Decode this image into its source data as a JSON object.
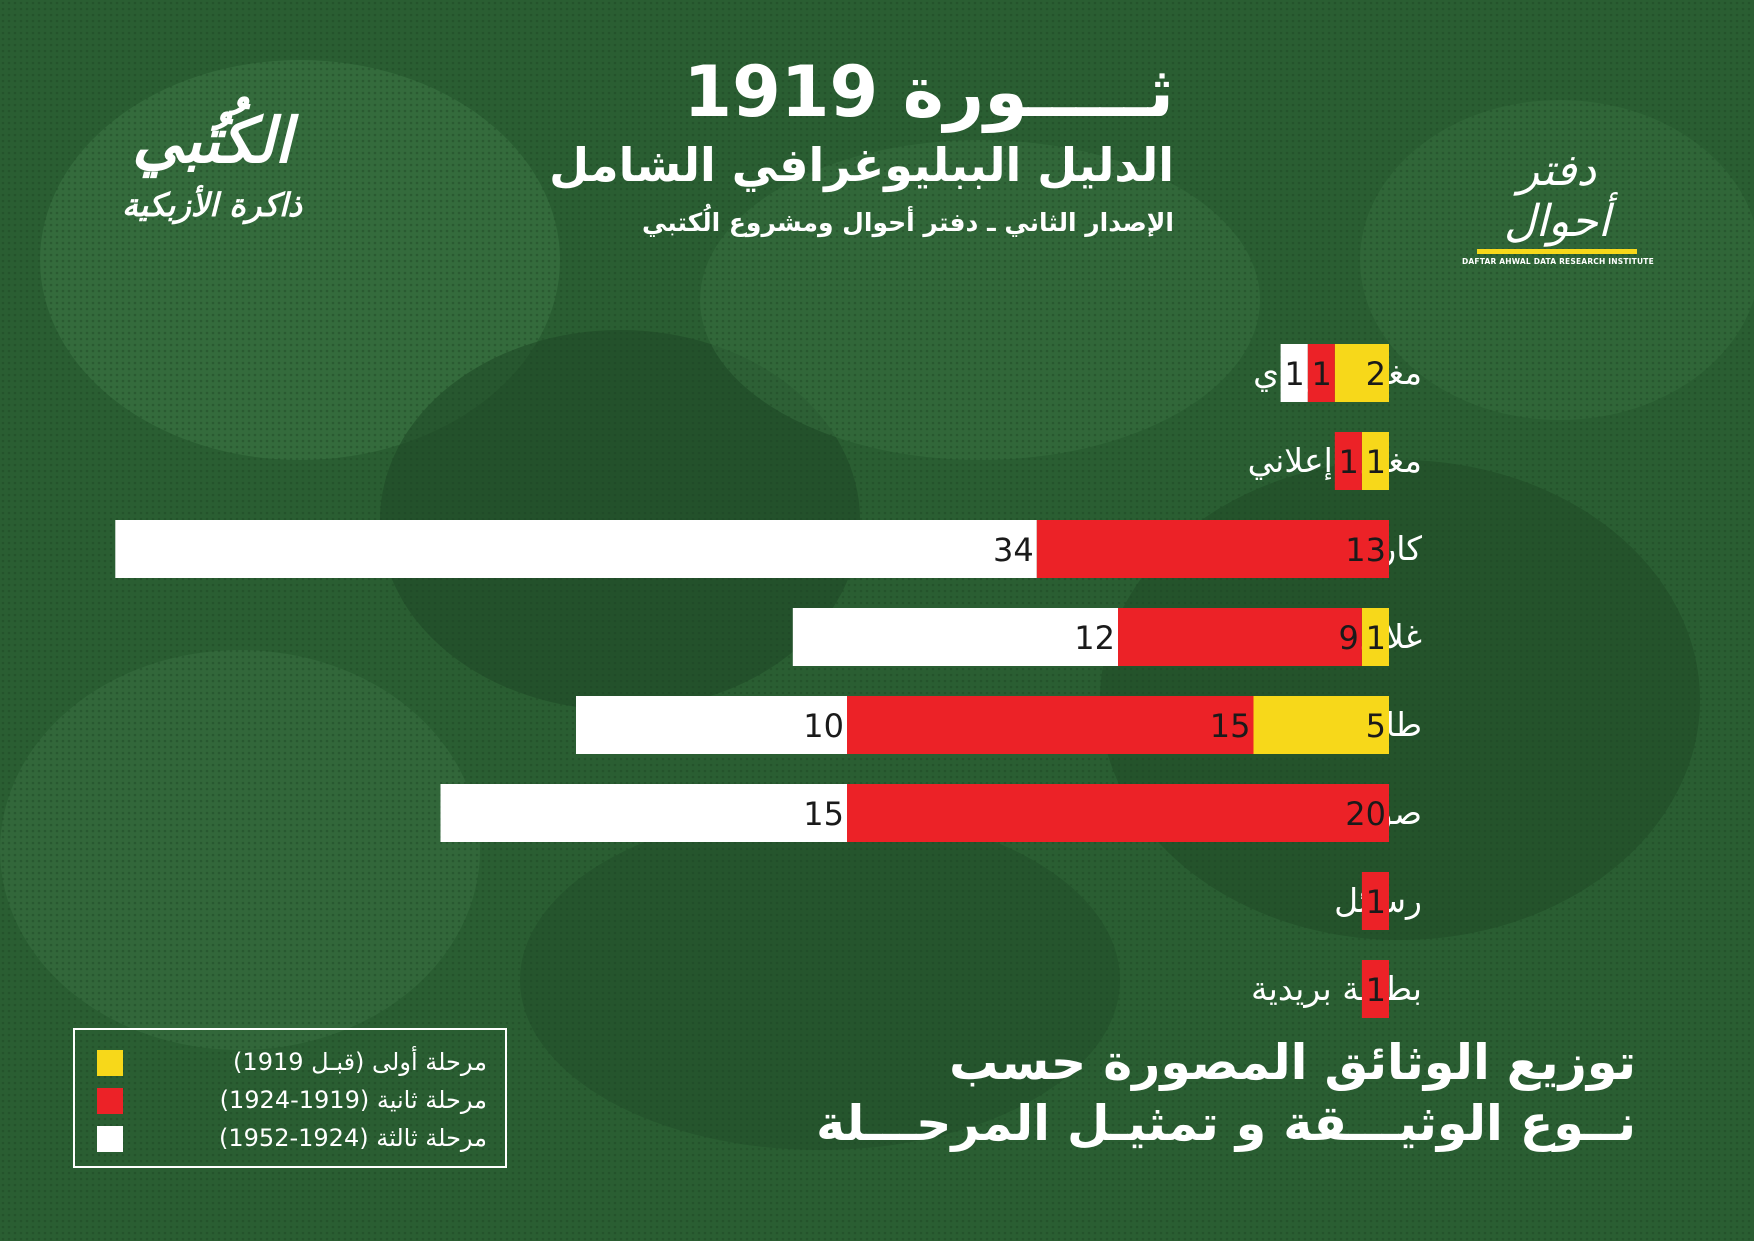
{
  "header": {
    "title": "ثـــــورة 1919",
    "subtitle": "الدليل الببليوغرافي الشامل",
    "edition": "الإصدار الثاني ـ دفتر أحوال ومشروع الُكتبي"
  },
  "logos": {
    "left_line1": "الكُتُبي",
    "left_line2": "ذاكرة الأزبكية",
    "right_arabic": "دفتر أحوال",
    "right_english": "DAFTAR AHWAL DATA RESEARCH INSTITUTE"
  },
  "colors": {
    "background": "#2a5e32",
    "stage1": "#f7d81a",
    "stage2": "#ec2227",
    "stage3": "#ffffff"
  },
  "legend": [
    {
      "label": "مرحلة أولى (قبـل 1919)",
      "color": "#f7d81a"
    },
    {
      "label": "مرحلة ثانية (1919-1924)",
      "color": "#ec2227"
    },
    {
      "label": "مرحلة ثالثة (1924-1952)",
      "color": "#ffffff"
    }
  ],
  "footer": {
    "line1": "توزيع الوثائق المصورة حسب",
    "line2": "نــوع الوثيـــقة و تمثيـل المرحـــلة"
  },
  "chart_data": {
    "type": "bar",
    "orientation": "horizontal",
    "stacked": true,
    "categories": [
      "مغلف بريدي",
      "مغلف إعلاني",
      "كاريكاتور",
      "غلاف مجلة",
      "طابع بريد تذكاري",
      "صورة فوتوغرافية",
      "رسائل",
      "بطاقة بريدية"
    ],
    "series": [
      {
        "name": "مرحلة أولى (قبـل 1919)",
        "color": "#f7d81a",
        "values": [
          2,
          1,
          0,
          1,
          5,
          0,
          0,
          0
        ]
      },
      {
        "name": "مرحلة ثانية (1919-1924)",
        "color": "#ec2227",
        "values": [
          1,
          1,
          13,
          9,
          15,
          20,
          1,
          1
        ]
      },
      {
        "name": "مرحلة ثالثة (1924-1952)",
        "color": "#ffffff",
        "values": [
          1,
          0,
          34,
          12,
          10,
          15,
          0,
          0
        ]
      }
    ],
    "title": "",
    "xlabel": "",
    "ylabel": "",
    "grid": false,
    "legend_position": "bottom-left"
  }
}
